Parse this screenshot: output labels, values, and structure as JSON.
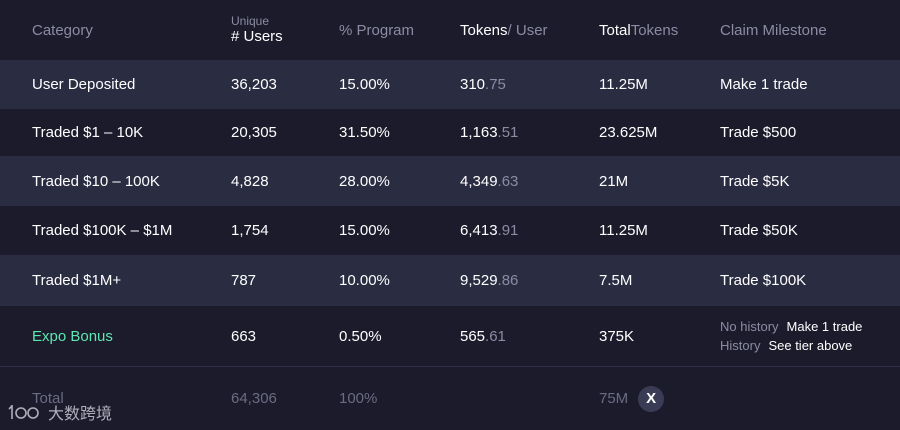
{
  "header": {
    "category": "Category",
    "users_small": "Unique",
    "users_big": "# Users",
    "program": "% Program",
    "tokens_strong": "Tokens",
    "tokens_rest": " / User",
    "total_strong": "Total",
    "total_rest": " Tokens",
    "milestone": "Claim Milestone"
  },
  "rows": [
    {
      "category": "User Deposited",
      "users": "36,203",
      "program": "15.00%",
      "tokens_int": "310",
      "tokens_dec": ".75",
      "total": "11.25M",
      "milestone": "Make 1 trade"
    },
    {
      "category": "Traded $1 – 10K",
      "users": "20,305",
      "program": "31.50%",
      "tokens_int": "1,163",
      "tokens_dec": ".51",
      "total": "23.625M",
      "milestone": "Trade $500"
    },
    {
      "category": "Traded $10 – 100K",
      "users": "4,828",
      "program": "28.00%",
      "tokens_int": "4,349",
      "tokens_dec": ".63",
      "total": "21M",
      "milestone": "Trade $5K"
    },
    {
      "category": "Traded $100K – $1M",
      "users": "1,754",
      "program": "15.00%",
      "tokens_int": "6,413",
      "tokens_dec": ".91",
      "total": "11.25M",
      "milestone": "Trade $50K"
    },
    {
      "category": "Traded $1M+",
      "users": "787",
      "program": "10.00%",
      "tokens_int": "9,529",
      "tokens_dec": ".86",
      "total": "7.5M",
      "milestone": "Trade $100K"
    }
  ],
  "bonus": {
    "category": "Expo Bonus",
    "users": "663",
    "program": "0.50%",
    "tokens_int": "565",
    "tokens_dec": ".61",
    "total": "375K",
    "milestone_line1_label": "No history",
    "milestone_line1_value": "Make 1 trade",
    "milestone_line2_label": "History",
    "milestone_line2_value": "See tier above"
  },
  "total": {
    "label": "Total",
    "users": "64,306",
    "program": "100%",
    "tokens": "75M",
    "badge": "X"
  },
  "watermark": {
    "text": "大数跨境"
  }
}
